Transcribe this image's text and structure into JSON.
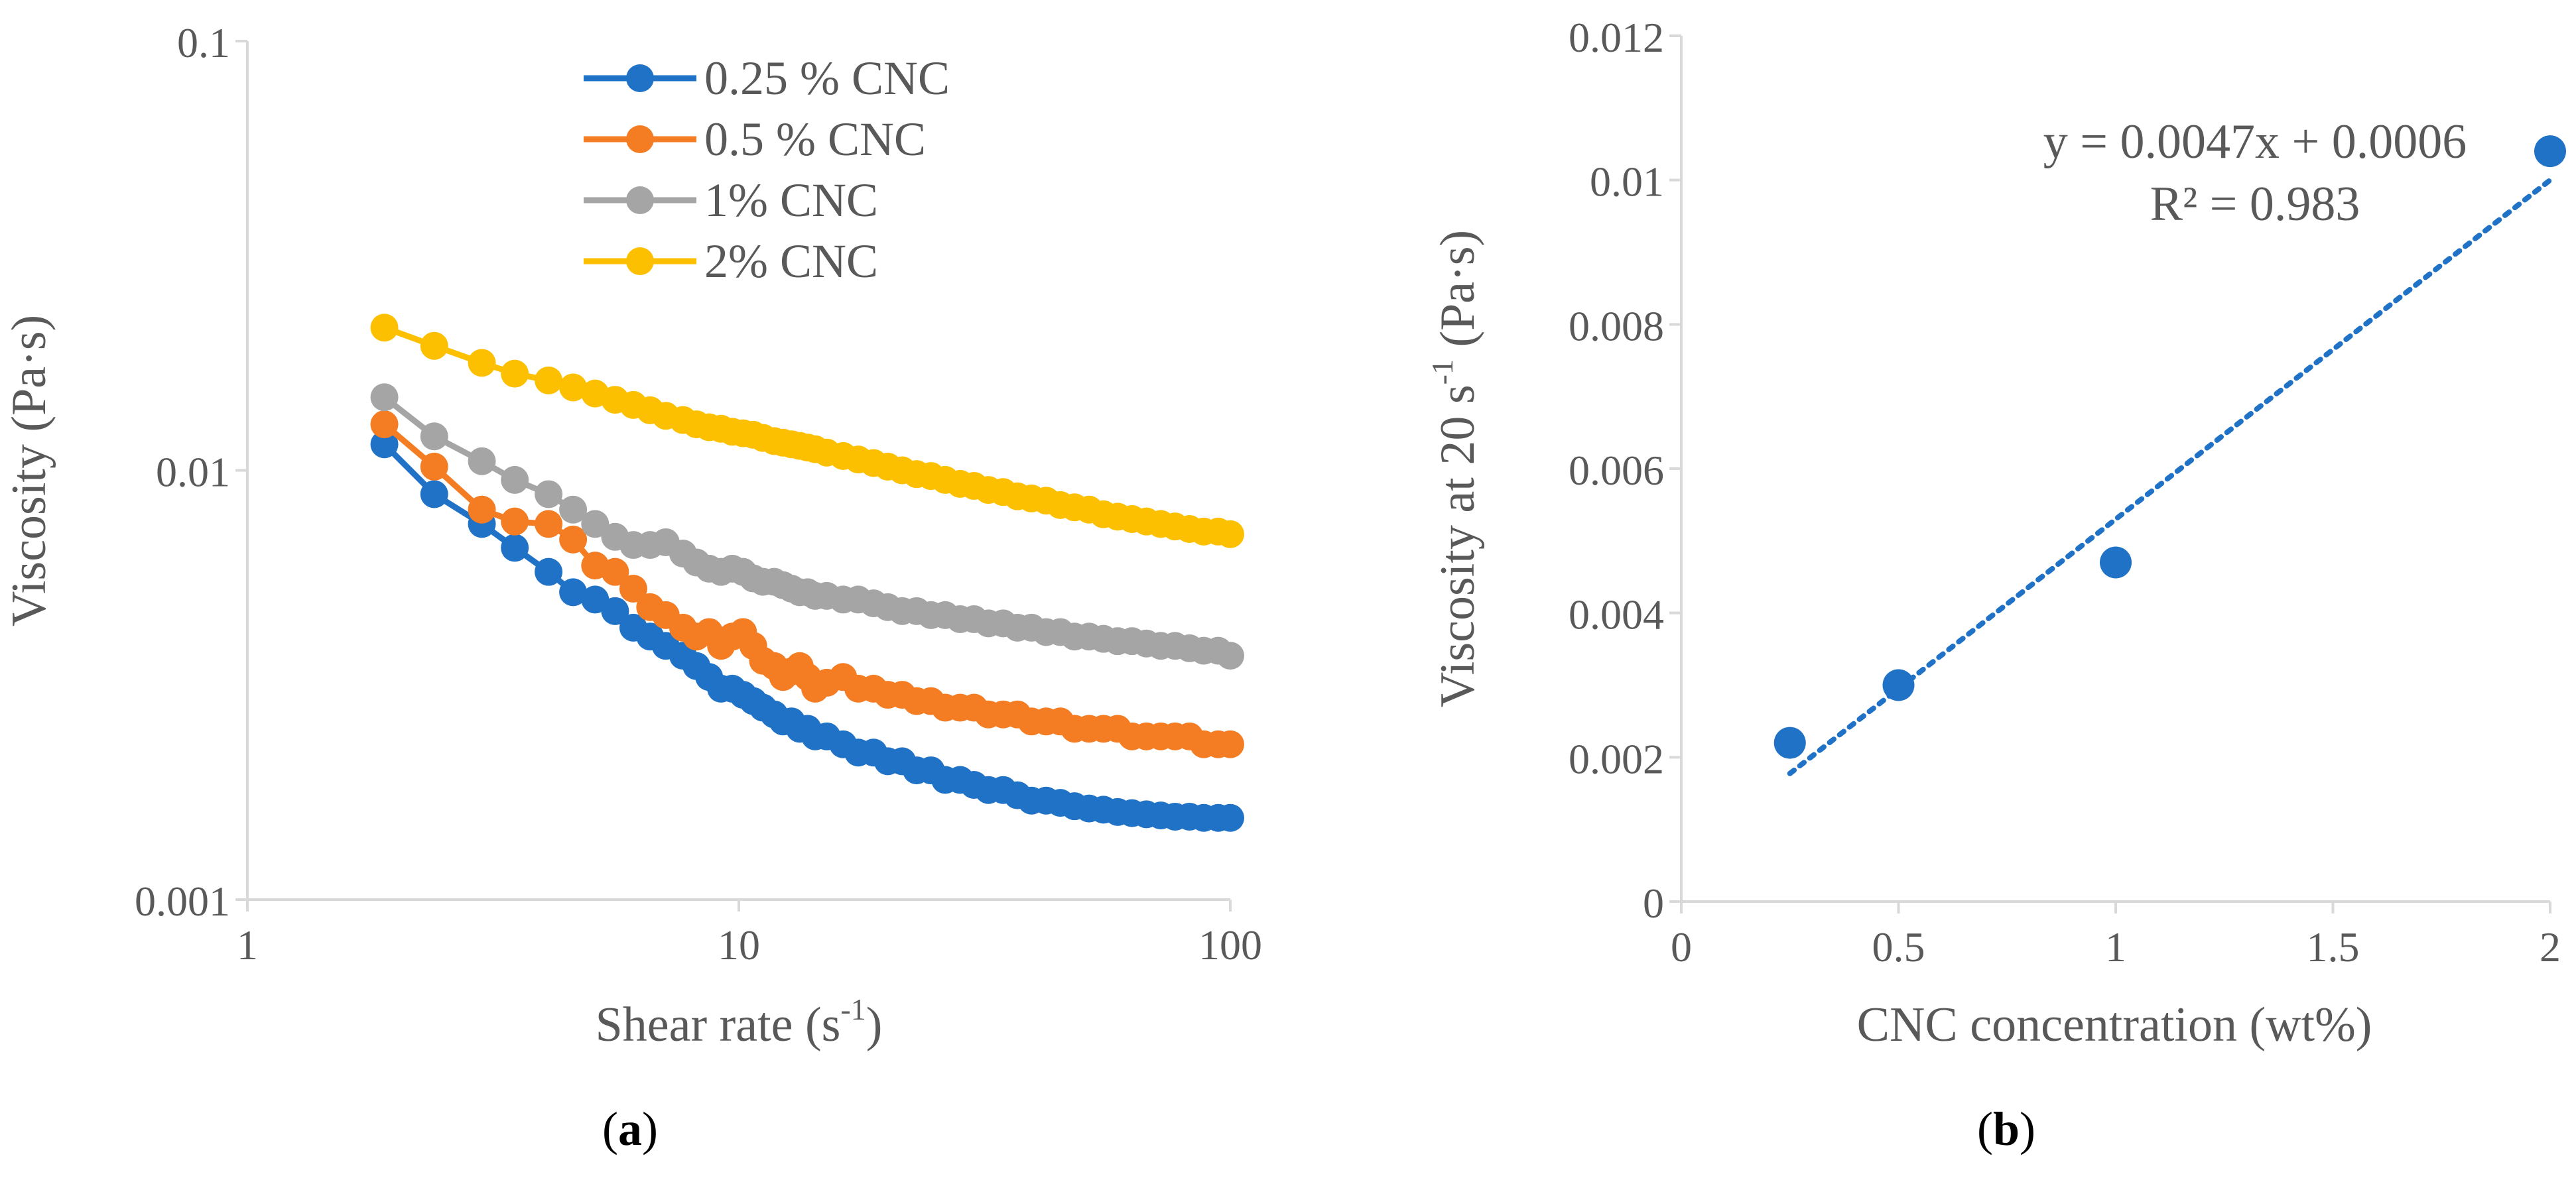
{
  "colors": {
    "blue": "#1f72c6",
    "orange": "#f47d24",
    "gray": "#a5a5a5",
    "yellow": "#fdc000",
    "axis": "#d9d9d9",
    "text": "#595959",
    "black": "#000000"
  },
  "chart_data": [
    {
      "type": "line",
      "panel": "a",
      "panel_label": {
        "open": "(",
        "letter": "a",
        "close": ")"
      },
      "xscale": "log",
      "yscale": "log",
      "xlim": [
        1,
        100
      ],
      "ylim": [
        0.001,
        0.1
      ],
      "xticks": [
        1,
        10,
        100
      ],
      "xtick_labels": [
        "1",
        "10",
        "100"
      ],
      "yticks": [
        0.001,
        0.01,
        0.1
      ],
      "ytick_labels": [
        "0.001",
        "0.01",
        "0.1"
      ],
      "xlabel": {
        "main": "Shear rate (s",
        "sup": "-1",
        "end": ")"
      },
      "ylabel": "Viscosity (Pa·s)",
      "legend_position": "top-center",
      "series": [
        {
          "name": "0.25 % CNC",
          "color": "#1f72c6",
          "x": [
            1.9,
            2.4,
            3.0,
            3.5,
            4.1,
            4.6,
            5.1,
            5.6,
            6.1,
            6.6,
            7.1,
            7.7,
            8.2,
            8.7,
            9.2,
            9.7,
            10.2,
            10.7,
            11.2,
            11.8,
            12.3,
            12.8,
            13.3,
            13.8,
            14.3,
            15.1,
            16.3,
            17.5,
            18.8,
            20.1,
            21.5,
            23.0,
            24.6,
            26.3,
            28.2,
            30.1,
            32.2,
            34.5,
            36.9,
            39.4,
            42.2,
            45.1,
            48.2,
            51.6,
            55.2,
            59.0,
            63.1,
            67.5,
            72.2,
            77.2,
            82.6,
            88.3,
            94.5,
            100
          ],
          "y": [
            0.0115,
            0.0088,
            0.0075,
            0.0066,
            0.0058,
            0.0052,
            0.005,
            0.0047,
            0.0043,
            0.0041,
            0.0039,
            0.0037,
            0.0035,
            0.0033,
            0.0031,
            0.0031,
            0.003,
            0.0029,
            0.0028,
            0.0027,
            0.0026,
            0.0026,
            0.0025,
            0.0025,
            0.0024,
            0.0024,
            0.0023,
            0.0022,
            0.0022,
            0.0021,
            0.0021,
            0.002,
            0.002,
            0.0019,
            0.0019,
            0.00185,
            0.0018,
            0.0018,
            0.00175,
            0.0017,
            0.0017,
            0.00168,
            0.00165,
            0.00163,
            0.00162,
            0.0016,
            0.00159,
            0.00158,
            0.00157,
            0.00156,
            0.00156,
            0.00155,
            0.00155,
            0.00155
          ]
        },
        {
          "name": "0.5 % CNC",
          "color": "#f47d24",
          "x": [
            1.9,
            2.4,
            3.0,
            3.5,
            4.1,
            4.6,
            5.1,
            5.6,
            6.1,
            6.6,
            7.1,
            7.7,
            8.2,
            8.7,
            9.2,
            9.7,
            10.2,
            10.7,
            11.2,
            11.8,
            12.3,
            12.8,
            13.3,
            13.8,
            14.3,
            15.1,
            16.3,
            17.5,
            18.8,
            20.1,
            21.5,
            23.0,
            24.6,
            26.3,
            28.2,
            30.1,
            32.2,
            34.5,
            36.9,
            39.4,
            42.2,
            45.1,
            48.2,
            51.6,
            55.2,
            59.0,
            63.1,
            67.5,
            72.2,
            77.2,
            82.6,
            88.3,
            94.5,
            100
          ],
          "y": [
            0.0128,
            0.0102,
            0.0081,
            0.0076,
            0.0075,
            0.0069,
            0.006,
            0.0058,
            0.0053,
            0.0048,
            0.0046,
            0.0043,
            0.0041,
            0.0042,
            0.0039,
            0.0041,
            0.0042,
            0.0039,
            0.0036,
            0.0035,
            0.0033,
            0.0034,
            0.0035,
            0.0033,
            0.0031,
            0.0032,
            0.0033,
            0.0031,
            0.0031,
            0.003,
            0.003,
            0.0029,
            0.0029,
            0.0028,
            0.0028,
            0.0028,
            0.0027,
            0.0027,
            0.0027,
            0.0026,
            0.0026,
            0.0026,
            0.0025,
            0.0025,
            0.0025,
            0.0025,
            0.0024,
            0.0024,
            0.0024,
            0.0024,
            0.0024,
            0.0023,
            0.0023,
            0.0023
          ]
        },
        {
          "name": "1% CNC",
          "color": "#a5a5a5",
          "x": [
            1.9,
            2.4,
            3.0,
            3.5,
            4.1,
            4.6,
            5.1,
            5.6,
            6.1,
            6.6,
            7.1,
            7.7,
            8.2,
            8.7,
            9.2,
            9.7,
            10.2,
            10.7,
            11.2,
            11.8,
            12.3,
            12.8,
            13.3,
            13.8,
            14.3,
            15.1,
            16.3,
            17.5,
            18.8,
            20.1,
            21.5,
            23.0,
            24.6,
            26.3,
            28.2,
            30.1,
            32.2,
            34.5,
            36.9,
            39.4,
            42.2,
            45.1,
            48.2,
            51.6,
            55.2,
            59.0,
            63.1,
            67.5,
            72.2,
            77.2,
            82.6,
            88.3,
            94.5,
            100
          ],
          "y": [
            0.0148,
            0.012,
            0.0105,
            0.0095,
            0.0088,
            0.0081,
            0.0075,
            0.007,
            0.0067,
            0.0067,
            0.0068,
            0.0064,
            0.0061,
            0.0059,
            0.0058,
            0.0059,
            0.0058,
            0.0056,
            0.0055,
            0.0055,
            0.0054,
            0.0053,
            0.0052,
            0.0052,
            0.0051,
            0.0051,
            0.005,
            0.005,
            0.0049,
            0.0048,
            0.0047,
            0.0047,
            0.0046,
            0.0046,
            0.0045,
            0.0045,
            0.0044,
            0.0044,
            0.0043,
            0.0043,
            0.0042,
            0.0042,
            0.0041,
            0.0041,
            0.00405,
            0.004,
            0.004,
            0.00395,
            0.0039,
            0.0039,
            0.00385,
            0.0038,
            0.0038,
            0.0037
          ]
        },
        {
          "name": "2% CNC",
          "color": "#fdc000",
          "x": [
            1.9,
            2.4,
            3.0,
            3.5,
            4.1,
            4.6,
            5.1,
            5.6,
            6.1,
            6.6,
            7.1,
            7.7,
            8.2,
            8.7,
            9.2,
            9.7,
            10.2,
            10.7,
            11.2,
            11.8,
            12.3,
            12.8,
            13.3,
            13.8,
            14.3,
            15.1,
            16.3,
            17.5,
            18.8,
            20.1,
            21.5,
            23.0,
            24.6,
            26.3,
            28.2,
            30.1,
            32.2,
            34.5,
            36.9,
            39.4,
            42.2,
            45.1,
            48.2,
            51.6,
            55.2,
            59.0,
            63.1,
            67.5,
            72.2,
            77.2,
            82.6,
            88.3,
            94.5,
            100
          ],
          "y": [
            0.0215,
            0.0195,
            0.0178,
            0.0168,
            0.0162,
            0.0156,
            0.0151,
            0.0146,
            0.0142,
            0.0138,
            0.0134,
            0.0131,
            0.0128,
            0.0126,
            0.0125,
            0.0123,
            0.0122,
            0.0121,
            0.0119,
            0.0117,
            0.0116,
            0.0115,
            0.0114,
            0.0113,
            0.0112,
            0.011,
            0.0108,
            0.0106,
            0.0104,
            0.0102,
            0.01,
            0.0098,
            0.0097,
            0.0095,
            0.0093,
            0.0092,
            0.009,
            0.0089,
            0.0087,
            0.0086,
            0.0085,
            0.0083,
            0.0082,
            0.0081,
            0.0079,
            0.0078,
            0.0077,
            0.0076,
            0.0075,
            0.0074,
            0.0073,
            0.0072,
            0.0072,
            0.0071
          ]
        }
      ]
    },
    {
      "type": "scatter",
      "panel": "b",
      "panel_label": {
        "open": "(",
        "letter": "b",
        "close": ")"
      },
      "xlim": [
        0,
        2
      ],
      "ylim": [
        0,
        0.012
      ],
      "xticks": [
        0,
        0.5,
        1,
        1.5,
        2
      ],
      "xtick_labels": [
        "0",
        "0.5",
        "1",
        "1.5",
        "2"
      ],
      "yticks": [
        0,
        0.002,
        0.004,
        0.006,
        0.008,
        0.01,
        0.012
      ],
      "ytick_labels": [
        "0",
        "0.002",
        "0.004",
        "0.006",
        "0.008",
        "0.01",
        "0.012"
      ],
      "xlabel": "CNC concentration (wt%)",
      "ylabel": {
        "main": "Viscosity at 20 s",
        "sup": "-1",
        "end": " (Pa·s)"
      },
      "series": [
        {
          "name": "Viscosity at 20 s-1",
          "color": "#1f72c6",
          "x": [
            0.25,
            0.5,
            1,
            2
          ],
          "y": [
            0.0022,
            0.003,
            0.0047,
            0.0104
          ]
        }
      ],
      "trendline": {
        "type": "linear",
        "slope": 0.0047,
        "intercept": 0.0006,
        "x_range": [
          0.25,
          2
        ],
        "style": "dotted",
        "color": "#1f72c6"
      },
      "annotations": {
        "equation": "y = 0.0047x + 0.0006",
        "r_squared": "R² = 0.983"
      }
    }
  ]
}
